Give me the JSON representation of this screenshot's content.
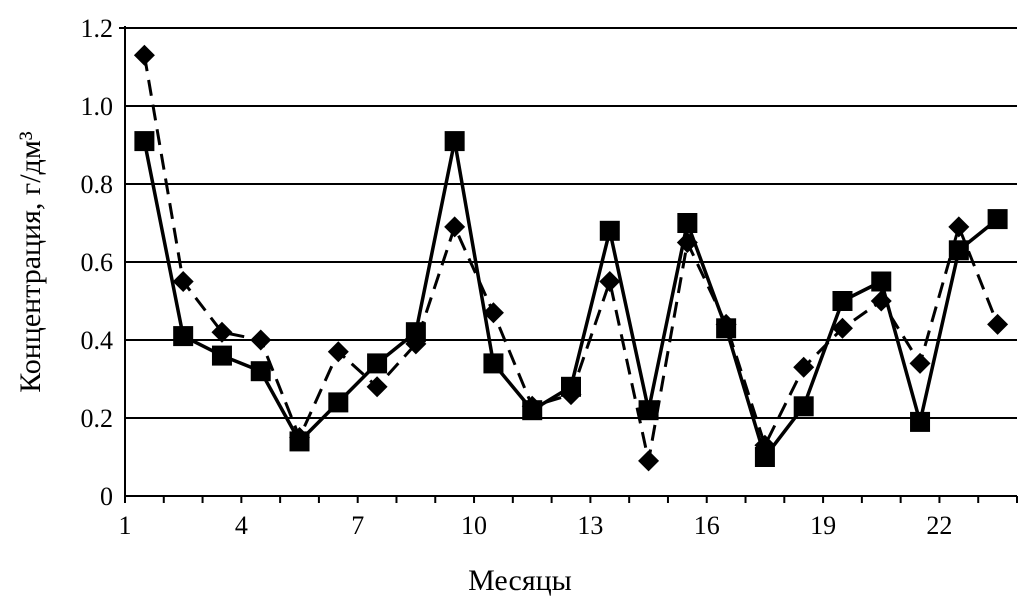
{
  "chart_data": {
    "type": "line",
    "xlabel": "Месяцы",
    "ylabel": "Концентрация, г/дм³",
    "ylim": [
      0,
      1.2
    ],
    "xlim": [
      1,
      24
    ],
    "x_ticks": [
      "1",
      "4",
      "7",
      "10",
      "13",
      "16",
      "19",
      "22"
    ],
    "y_ticks": [
      "0",
      "0.2",
      "0.4",
      "0.6",
      "0.8",
      "1.0",
      "1.2"
    ],
    "grid": "horizontal",
    "legend": "none",
    "x": [
      1.5,
      2.5,
      3.5,
      4.5,
      5.5,
      6.5,
      7.5,
      8.5,
      9.5,
      10.5,
      11.5,
      12.5,
      13.5,
      14.5,
      15.5,
      16.5,
      17.5,
      18.5,
      19.5,
      20.5,
      21.5,
      22.5,
      23.5
    ],
    "series": [
      {
        "marker": "diamond",
        "line_style": "dashed",
        "values": [
          1.13,
          0.55,
          0.42,
          0.4,
          0.15,
          0.37,
          0.28,
          0.39,
          0.69,
          0.47,
          0.23,
          0.26,
          0.55,
          0.09,
          0.65,
          0.44,
          0.13,
          0.33,
          0.43,
          0.5,
          0.34,
          0.69,
          0.44
        ]
      },
      {
        "marker": "square",
        "line_style": "solid",
        "values": [
          0.91,
          0.41,
          0.36,
          0.32,
          0.14,
          0.24,
          0.34,
          0.42,
          0.91,
          0.34,
          0.22,
          0.28,
          0.68,
          0.22,
          0.7,
          0.43,
          0.1,
          0.23,
          0.5,
          0.55,
          0.19,
          0.63,
          0.71
        ]
      }
    ],
    "colors": {
      "line": "#000000",
      "grid": "#000000",
      "background": "#ffffff"
    }
  }
}
